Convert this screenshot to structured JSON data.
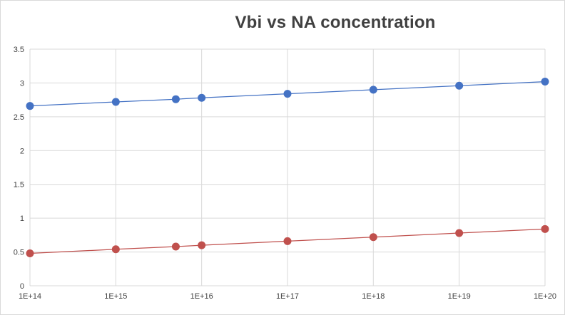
{
  "chart_data": {
    "type": "scatter",
    "title": "Vbi vs NA concentration",
    "xlabel": "",
    "ylabel": "",
    "x_scale": "log",
    "xlim": [
      100000000000000.0,
      1e+20
    ],
    "ylim": [
      0,
      3.5
    ],
    "x_tick_labels": [
      "1E+14",
      "1E+15",
      "1E+16",
      "1E+17",
      "1E+18",
      "1E+19",
      "1E+20"
    ],
    "y_tick_labels": [
      "0",
      "0.5",
      "1",
      "1.5",
      "2",
      "2.5",
      "3",
      "3.5"
    ],
    "grid": true,
    "legend": "none",
    "series": [
      {
        "name": "Series 1",
        "color": "#4472c4",
        "x": [
          100000000000000.0,
          1000000000000000.0,
          5000000000000000.0,
          1e+16,
          1e+17,
          1e+18,
          1e+19,
          1e+20
        ],
        "values": [
          2.66,
          2.72,
          2.76,
          2.78,
          2.84,
          2.9,
          2.96,
          3.02
        ]
      },
      {
        "name": "Series 2",
        "color": "#c0504d",
        "x": [
          100000000000000.0,
          1000000000000000.0,
          5000000000000000.0,
          1e+16,
          1e+17,
          1e+18,
          1e+19,
          1e+20
        ],
        "values": [
          0.48,
          0.54,
          0.58,
          0.6,
          0.66,
          0.72,
          0.78,
          0.84
        ]
      }
    ]
  }
}
